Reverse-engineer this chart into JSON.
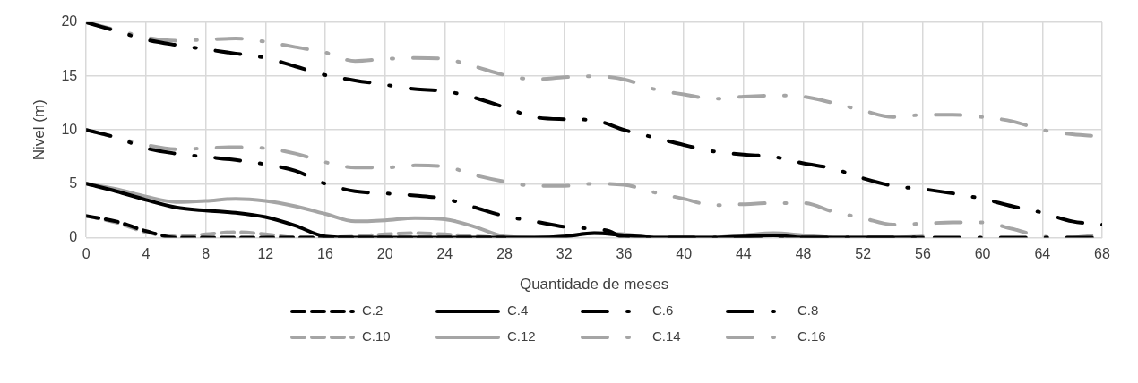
{
  "chart_data": {
    "type": "line",
    "xlabel": "Quantidade de meses",
    "ylabel": "Nivel (m)",
    "xlim": [
      0,
      68
    ],
    "xticks": [
      0,
      4,
      8,
      12,
      16,
      20,
      24,
      28,
      32,
      36,
      40,
      44,
      48,
      52,
      56,
      60,
      64,
      68
    ],
    "ylim": [
      0,
      20
    ],
    "yticks": [
      0,
      5,
      10,
      15,
      20
    ],
    "grid": true,
    "legend": "bottom",
    "marker": "none",
    "series": [
      {
        "name": "C.2",
        "color": "#000000",
        "line_style": "dashed",
        "x": [
          0,
          2,
          4,
          6,
          8,
          10,
          12,
          14,
          16,
          18,
          20,
          22,
          24,
          26,
          28
        ],
        "values": [
          2,
          1.5,
          0.6,
          0,
          0,
          0,
          0,
          0,
          0,
          0,
          0,
          0,
          0,
          0,
          0
        ]
      },
      {
        "name": "C.4",
        "color": "#000000",
        "line_style": "solid",
        "x": [
          0,
          2,
          4,
          6,
          8,
          10,
          12,
          14,
          16,
          18,
          20,
          22,
          24,
          26,
          28,
          30,
          32,
          34,
          36,
          38,
          40,
          42,
          44,
          46,
          48,
          50,
          52,
          54,
          56
        ],
        "values": [
          5,
          4.3,
          3.5,
          2.8,
          2.5,
          2.3,
          1.9,
          1.1,
          0.1,
          0,
          0,
          0,
          0,
          0,
          0,
          0,
          0.1,
          0.4,
          0.2,
          0,
          0,
          0,
          0.1,
          0.2,
          0,
          0,
          0,
          0,
          0
        ]
      },
      {
        "name": "C.6",
        "color": "#000000",
        "line_style": "dashdot",
        "x": [
          0,
          2,
          4,
          6,
          8,
          10,
          12,
          14,
          16,
          18,
          20,
          22,
          24,
          26,
          28,
          30,
          32,
          34,
          35,
          36,
          40,
          44,
          48,
          52,
          56,
          60,
          64,
          68
        ],
        "values": [
          10,
          9.3,
          8.3,
          7.8,
          7.5,
          7.2,
          6.8,
          6.2,
          5.0,
          4.3,
          4.1,
          3.9,
          3.6,
          2.8,
          2.0,
          1.5,
          1.0,
          0.8,
          0.6,
          0,
          0,
          0,
          0,
          0,
          0,
          0,
          0,
          0
        ]
      },
      {
        "name": "C.8",
        "color": "#000000",
        "line_style": "dashdot",
        "x": [
          0,
          2,
          4,
          6,
          8,
          10,
          12,
          14,
          16,
          18,
          20,
          22,
          24,
          26,
          28,
          30,
          32,
          34,
          36,
          38,
          40,
          42,
          44,
          46,
          48,
          50,
          52,
          54,
          56,
          58,
          60,
          62,
          64,
          66,
          68
        ],
        "values": [
          20,
          19.2,
          18.4,
          17.9,
          17.5,
          17.1,
          16.7,
          15.9,
          15.1,
          14.6,
          14.2,
          13.8,
          13.6,
          13.0,
          12.1,
          11.2,
          11.0,
          10.9,
          10.0,
          9.3,
          8.6,
          8.0,
          7.7,
          7.5,
          6.9,
          6.4,
          5.5,
          4.8,
          4.5,
          4.1,
          3.6,
          2.9,
          2.3,
          1.5,
          1.2
        ]
      },
      {
        "name": "C.10",
        "color": "#a5a5a5",
        "line_style": "dashed",
        "x": [
          0,
          2,
          4,
          6,
          8,
          10,
          12,
          14,
          16,
          18,
          20,
          22,
          24,
          26,
          28
        ],
        "values": [
          2,
          1.4,
          0.5,
          0.1,
          0.3,
          0.5,
          0.3,
          0,
          0,
          0.1,
          0.3,
          0.4,
          0.3,
          0.1,
          0
        ]
      },
      {
        "name": "C.12",
        "color": "#a5a5a5",
        "line_style": "solid",
        "x": [
          0,
          2,
          4,
          6,
          8,
          10,
          12,
          14,
          16,
          18,
          20,
          22,
          24,
          26,
          28,
          30,
          32,
          34,
          36,
          38,
          40,
          42,
          44,
          46,
          48,
          50,
          52,
          54,
          56
        ],
        "values": [
          5,
          4.5,
          3.8,
          3.3,
          3.4,
          3.6,
          3.4,
          2.9,
          2.2,
          1.5,
          1.6,
          1.8,
          1.7,
          1.0,
          0.1,
          0,
          0.1,
          0.4,
          0.3,
          0,
          0,
          0,
          0.2,
          0.4,
          0.2,
          0,
          0,
          0,
          0.1
        ]
      },
      {
        "name": "C.14",
        "color": "#a5a5a5",
        "line_style": "dashdot",
        "x": [
          0,
          2,
          4,
          6,
          8,
          10,
          12,
          14,
          16,
          18,
          20,
          22,
          24,
          26,
          28,
          30,
          32,
          34,
          36,
          38,
          40,
          42,
          44,
          46,
          48,
          50,
          52,
          54,
          56,
          58,
          60,
          62,
          64,
          66,
          68
        ],
        "values": [
          10,
          9.3,
          8.6,
          8.2,
          8.3,
          8.4,
          8.3,
          7.8,
          7.0,
          6.5,
          6.5,
          6.7,
          6.6,
          5.8,
          5.2,
          4.8,
          4.8,
          5.0,
          4.9,
          4.2,
          3.6,
          3.0,
          3.1,
          3.2,
          3.2,
          2.4,
          1.8,
          1.2,
          1.3,
          1.4,
          1.4,
          0.8,
          0.1,
          0,
          0.3
        ]
      },
      {
        "name": "C.16",
        "color": "#a5a5a5",
        "line_style": "dashdot",
        "x": [
          0,
          2,
          4,
          6,
          8,
          10,
          12,
          14,
          16,
          18,
          20,
          22,
          24,
          26,
          28,
          30,
          32,
          34,
          36,
          38,
          40,
          42,
          44,
          46,
          48,
          50,
          52,
          54,
          56,
          58,
          60,
          62,
          64,
          66,
          68
        ],
        "values": [
          20,
          19.3,
          18.6,
          18.3,
          18.4,
          18.5,
          18.2,
          17.7,
          17.2,
          16.4,
          16.6,
          16.7,
          16.6,
          15.9,
          15.1,
          14.7,
          14.9,
          15.0,
          14.7,
          13.8,
          13.3,
          12.9,
          13.1,
          13.2,
          13.1,
          12.5,
          11.8,
          11.2,
          11.4,
          11.4,
          11.2,
          10.8,
          10.0,
          9.6,
          9.4
        ]
      }
    ]
  }
}
